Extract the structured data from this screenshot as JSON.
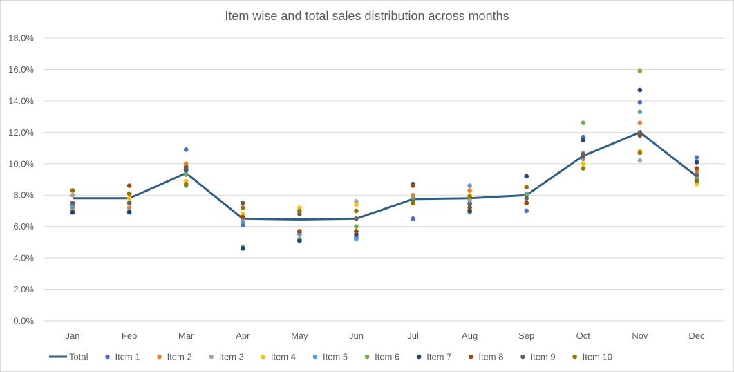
{
  "chart_data": {
    "type": "line",
    "title": "Item wise and total sales distribution across months",
    "categories": [
      "Jan",
      "Feb",
      "Mar",
      "Apr",
      "May",
      "Jun",
      "Jul",
      "Aug",
      "Sep",
      "Oct",
      "Nov",
      "Dec"
    ],
    "ylim": [
      0,
      18
    ],
    "y_ticks": [
      "0.0%",
      "2.0%",
      "4.0%",
      "6.0%",
      "8.0%",
      "10.0%",
      "12.0%",
      "14.0%",
      "16.0%",
      "18.0%"
    ],
    "grid": true,
    "legend_position": "bottom",
    "series": [
      {
        "name": "Total",
        "kind": "line",
        "color": "#2e5f8a",
        "values": [
          7.8,
          7.8,
          9.4,
          6.5,
          6.45,
          6.5,
          7.75,
          7.8,
          8.0,
          10.5,
          12.0,
          9.2
        ]
      },
      {
        "name": "Item 1",
        "kind": "marker",
        "color": "#4472c4",
        "values": [
          6.9,
          6.9,
          10.9,
          6.1,
          5.1,
          5.3,
          6.5,
          7.5,
          7.0,
          11.7,
          13.9,
          10.4
        ]
      },
      {
        "name": "Item 2",
        "kind": "marker",
        "color": "#ed7d31",
        "values": [
          7.2,
          7.2,
          10.0,
          6.3,
          5.6,
          5.7,
          8.0,
          8.3,
          7.5,
          10.4,
          12.6,
          9.5
        ]
      },
      {
        "name": "Item 3",
        "kind": "marker",
        "color": "#a5a5a5",
        "values": [
          8.0,
          7.5,
          9.5,
          6.5,
          5.6,
          7.6,
          7.5,
          7.7,
          8.0,
          10.7,
          10.2,
          9.0
        ]
      },
      {
        "name": "Item 4",
        "kind": "marker",
        "color": "#ffc000",
        "values": [
          8.3,
          7.8,
          8.9,
          6.8,
          7.2,
          7.4,
          7.5,
          8.0,
          8.0,
          10.0,
          10.8,
          8.7
        ]
      },
      {
        "name": "Item 5",
        "kind": "marker",
        "color": "#5b9bd5",
        "values": [
          7.3,
          7.0,
          8.6,
          6.3,
          5.5,
          5.2,
          7.6,
          8.6,
          8.1,
          10.3,
          13.3,
          9.0
        ]
      },
      {
        "name": "Item 6",
        "kind": "marker",
        "color": "#70ad47",
        "values": [
          7.0,
          7.5,
          9.3,
          4.7,
          5.2,
          6.0,
          7.8,
          6.9,
          8.0,
          12.6,
          15.9,
          9.2
        ]
      },
      {
        "name": "Item 7",
        "kind": "marker",
        "color": "#264478",
        "values": [
          6.9,
          6.9,
          9.6,
          4.6,
          5.1,
          5.5,
          8.7,
          7.0,
          9.2,
          11.5,
          14.7,
          10.1
        ]
      },
      {
        "name": "Item 8",
        "kind": "marker",
        "color": "#9e480e",
        "values": [
          7.5,
          8.6,
          9.8,
          6.6,
          5.7,
          5.7,
          8.6,
          7.2,
          7.5,
          10.5,
          11.8,
          9.7
        ]
      },
      {
        "name": "Item 9",
        "kind": "marker",
        "color": "#636363",
        "values": [
          7.5,
          7.5,
          9.7,
          7.5,
          6.8,
          6.5,
          7.6,
          7.4,
          7.8,
          10.6,
          12.0,
          9.3
        ]
      },
      {
        "name": "Item 10",
        "kind": "marker",
        "color": "#997300",
        "values": [
          8.3,
          8.1,
          8.7,
          7.2,
          7.0,
          7.0,
          7.5,
          7.9,
          8.5,
          9.7,
          10.7,
          8.9
        ]
      }
    ]
  }
}
